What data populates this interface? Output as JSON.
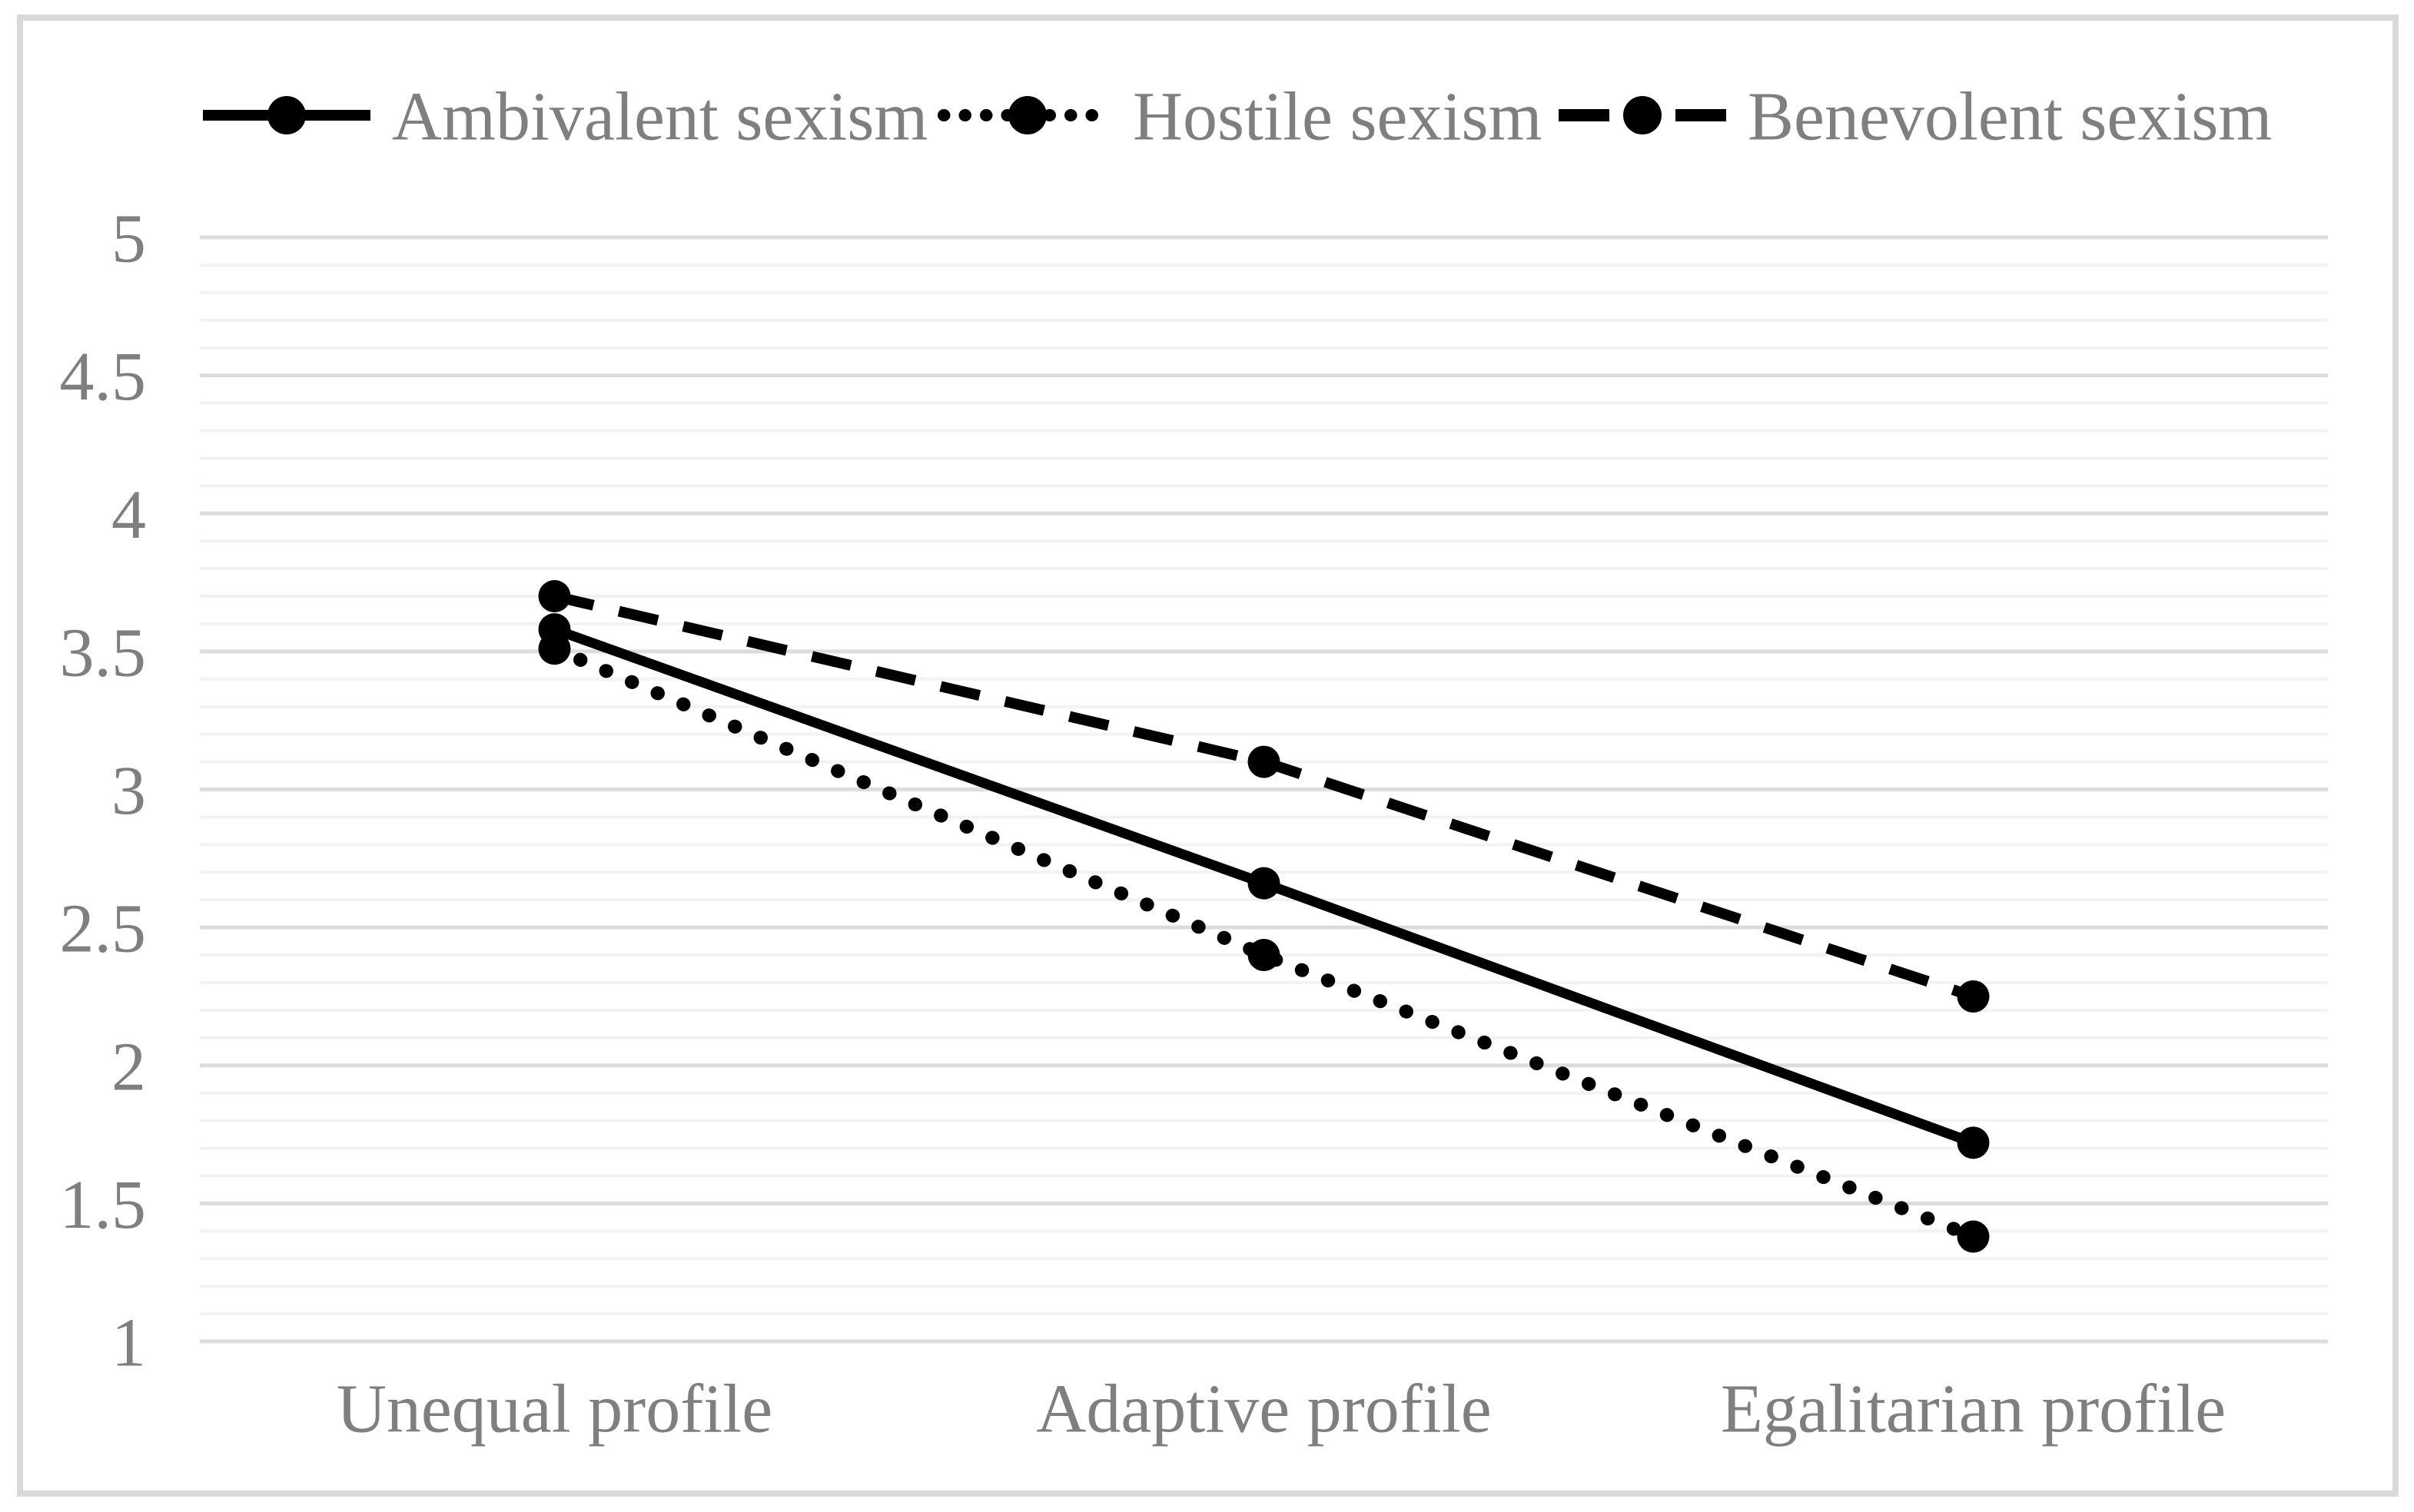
{
  "chart_data": {
    "type": "line",
    "title": "",
    "xlabel": "",
    "ylabel": "",
    "categories": [
      "Unequal profile",
      "Adaptive profile",
      "Egalitarian profile"
    ],
    "series": [
      {
        "name": "Ambivalent sexism",
        "line_style": "solid",
        "marker": "filled-circle",
        "color": "#000000",
        "values": [
          3.58,
          2.66,
          1.72
        ]
      },
      {
        "name": "Hostile sexism",
        "line_style": "dotted",
        "marker": "filled-circle",
        "color": "#000000",
        "values": [
          3.51,
          2.4,
          1.38
        ]
      },
      {
        "name": "Benevolent sexism",
        "line_style": "dashed",
        "marker": "filled-circle",
        "color": "#000000",
        "values": [
          3.7,
          3.1,
          2.25
        ]
      }
    ],
    "ylim": [
      1,
      5
    ],
    "yticks": [
      "5",
      "4.5",
      "4",
      "3.5",
      "3",
      "2.5",
      "2",
      "1.5",
      "1"
    ],
    "ytick_values": [
      5,
      4.5,
      4,
      3.5,
      3,
      2.5,
      2,
      1.5,
      1
    ],
    "major_grid_step": 0.5,
    "minor_grid_step": 0.1,
    "grid": "horizontal-only",
    "legend_position": "top",
    "has_vertical_axis_line": false,
    "has_x_axis_line": false
  },
  "colors": {
    "series": "#000000",
    "axis_text": "#7f7f7f",
    "legend_text": "#7f7f7f",
    "major_gridline": "#dcdcdc",
    "minor_gridline": "#f2f2f2",
    "border": "#d9d9d9",
    "background": "#ffffff"
  }
}
